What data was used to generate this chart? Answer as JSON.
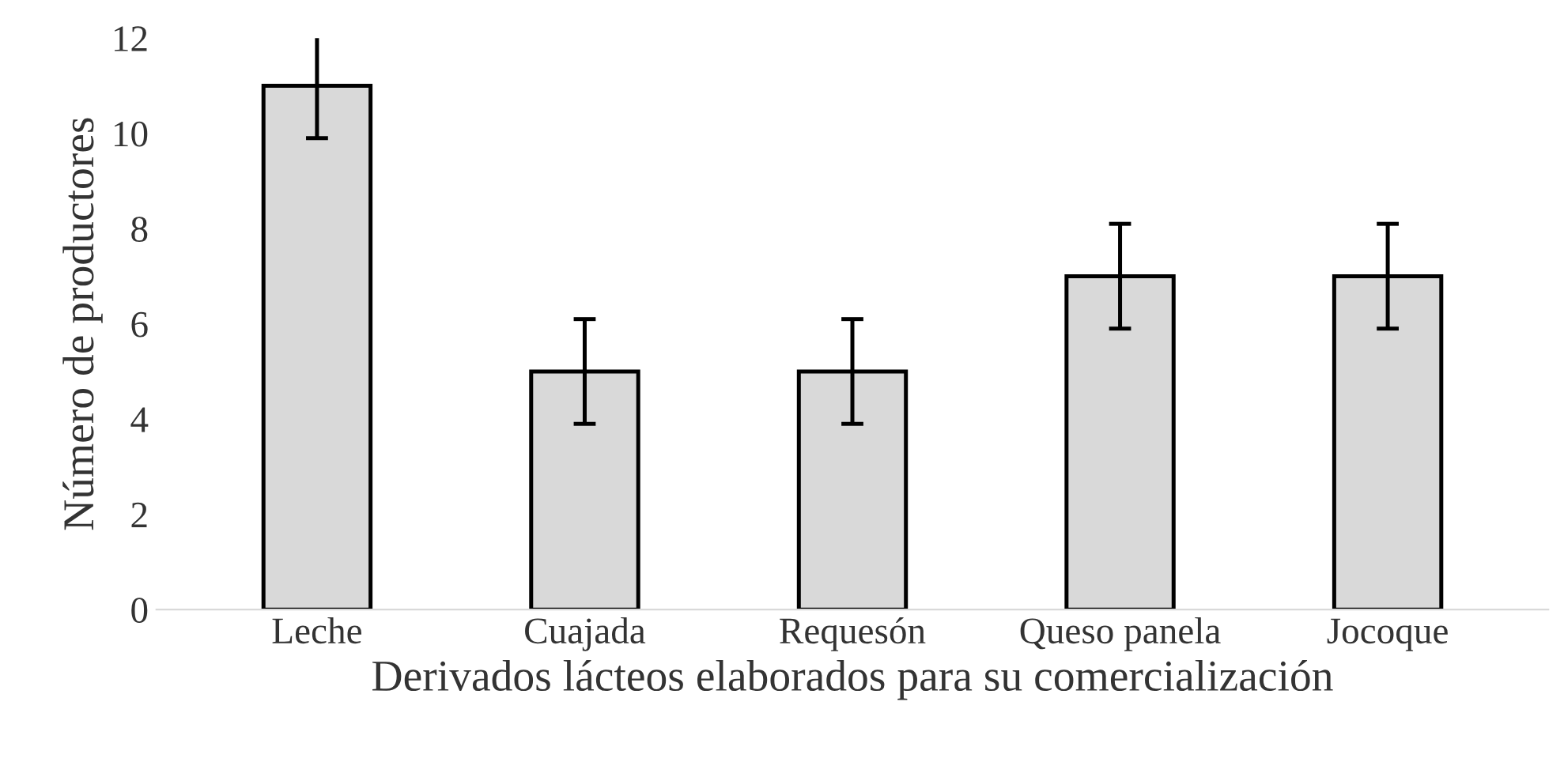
{
  "chart_data": {
    "type": "bar",
    "xlabel": "Derivados lácteos elaborados para su comercialización",
    "ylabel": "Número de productores",
    "categories": [
      "Leche",
      "Cuajada",
      "Requesón",
      "Queso panela",
      "Jocoque"
    ],
    "values": [
      11,
      5,
      5,
      7,
      7
    ],
    "errors": [
      1.1,
      1.1,
      1.1,
      1.1,
      1.1
    ],
    "color": "#d9d9d9",
    "ylim": [
      0,
      12
    ],
    "yticks": [
      0,
      2,
      4,
      6,
      8,
      10,
      12
    ],
    "grid": false
  }
}
